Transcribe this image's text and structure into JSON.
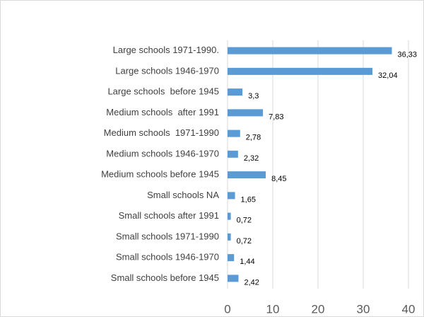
{
  "chart_data": {
    "type": "bar",
    "orientation": "horizontal",
    "categories": [
      "Large schools 1971-1990.",
      "Large schools 1946-1970",
      "Large schools  before 1945",
      "Medium schools  after 1991",
      "Medium schools  1971-1990",
      "Medium schools 1946-1970",
      "Medium schools before 1945",
      "Small schools NA",
      "Small schools after 1991",
      "Small schools 1971-1990",
      "Small schools 1946-1970",
      "Small schools before 1945"
    ],
    "values": [
      36.33,
      32.04,
      3.3,
      7.83,
      2.78,
      2.32,
      8.45,
      1.65,
      0.72,
      0.72,
      1.44,
      2.42
    ],
    "value_labels": [
      "36,33",
      "32,04",
      "3,3",
      "7,83",
      "2,78",
      "2,32",
      "8,45",
      "1,65",
      "0,72",
      "0,72",
      "1,44",
      "2,42"
    ],
    "color": "#5b9bd5",
    "xlim": [
      0,
      40
    ],
    "xticks": [
      0,
      10,
      20,
      30,
      40
    ],
    "grid": true
  }
}
